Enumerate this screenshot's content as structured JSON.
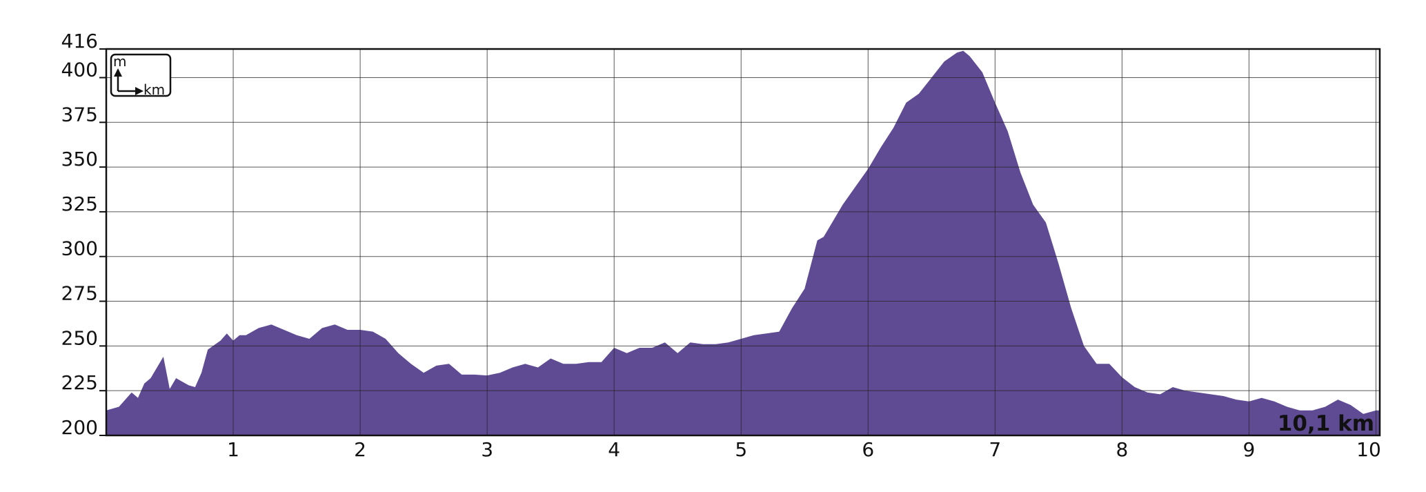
{
  "chart_data": {
    "type": "area",
    "color": "#5f4b93",
    "grid": true,
    "y_unit": "m",
    "x_unit": "km",
    "total_label": "10,1  km",
    "xlim": [
      0,
      10.03
    ],
    "ylim": [
      200,
      416
    ],
    "xticks": [
      1,
      2,
      3,
      4,
      5,
      6,
      7,
      8,
      9,
      10
    ],
    "yticks": [
      200,
      225,
      250,
      275,
      300,
      325,
      350,
      375,
      400,
      416
    ],
    "x": [
      0,
      0.1,
      0.2,
      0.25,
      0.3,
      0.35,
      0.4,
      0.45,
      0.5,
      0.55,
      0.6,
      0.65,
      0.7,
      0.75,
      0.8,
      0.9,
      0.95,
      1.0,
      1.05,
      1.1,
      1.2,
      1.3,
      1.4,
      1.5,
      1.6,
      1.7,
      1.8,
      1.9,
      2.0,
      2.1,
      2.2,
      2.3,
      2.4,
      2.5,
      2.6,
      2.7,
      2.8,
      2.9,
      3.0,
      3.1,
      3.2,
      3.3,
      3.4,
      3.5,
      3.6,
      3.7,
      3.8,
      3.9,
      4.0,
      4.1,
      4.2,
      4.3,
      4.4,
      4.5,
      4.6,
      4.7,
      4.8,
      4.9,
      5.0,
      5.1,
      5.2,
      5.3,
      5.4,
      5.5,
      5.6,
      5.65,
      5.7,
      5.8,
      5.9,
      6.0,
      6.1,
      6.2,
      6.3,
      6.4,
      6.5,
      6.6,
      6.7,
      6.75,
      6.8,
      6.9,
      7.0,
      7.1,
      7.2,
      7.3,
      7.4,
      7.5,
      7.6,
      7.7,
      7.8,
      7.9,
      8.0,
      8.1,
      8.2,
      8.3,
      8.4,
      8.5,
      8.6,
      8.7,
      8.8,
      8.9,
      9.0,
      9.1,
      9.2,
      9.3,
      9.4,
      9.5,
      9.6,
      9.7,
      9.8,
      9.9,
      10.0,
      10.03
    ],
    "values": [
      214,
      216,
      224,
      221,
      229,
      232,
      238,
      244,
      226,
      232,
      230,
      228,
      227,
      235,
      248,
      253,
      257,
      253,
      256,
      256,
      260,
      262,
      259,
      256,
      254,
      260,
      262,
      259,
      259,
      258,
      254,
      246,
      240,
      235,
      239,
      240,
      234,
      234,
      233.5,
      235,
      238,
      240,
      238,
      243,
      240,
      240,
      241,
      241,
      249,
      246,
      249,
      249,
      252,
      246,
      252,
      251,
      251,
      252,
      254,
      256,
      257,
      258,
      271,
      282,
      309,
      311,
      317,
      329,
      339,
      349,
      361,
      372,
      386,
      391,
      400,
      409,
      414,
      415,
      412,
      403,
      386,
      370,
      347,
      329,
      319,
      296,
      271,
      250,
      240,
      240,
      232.5,
      227,
      224,
      223,
      227,
      225,
      224,
      223,
      222,
      220,
      219,
      221,
      219,
      216,
      214,
      214,
      216,
      220,
      217,
      212,
      214,
      214
    ]
  }
}
